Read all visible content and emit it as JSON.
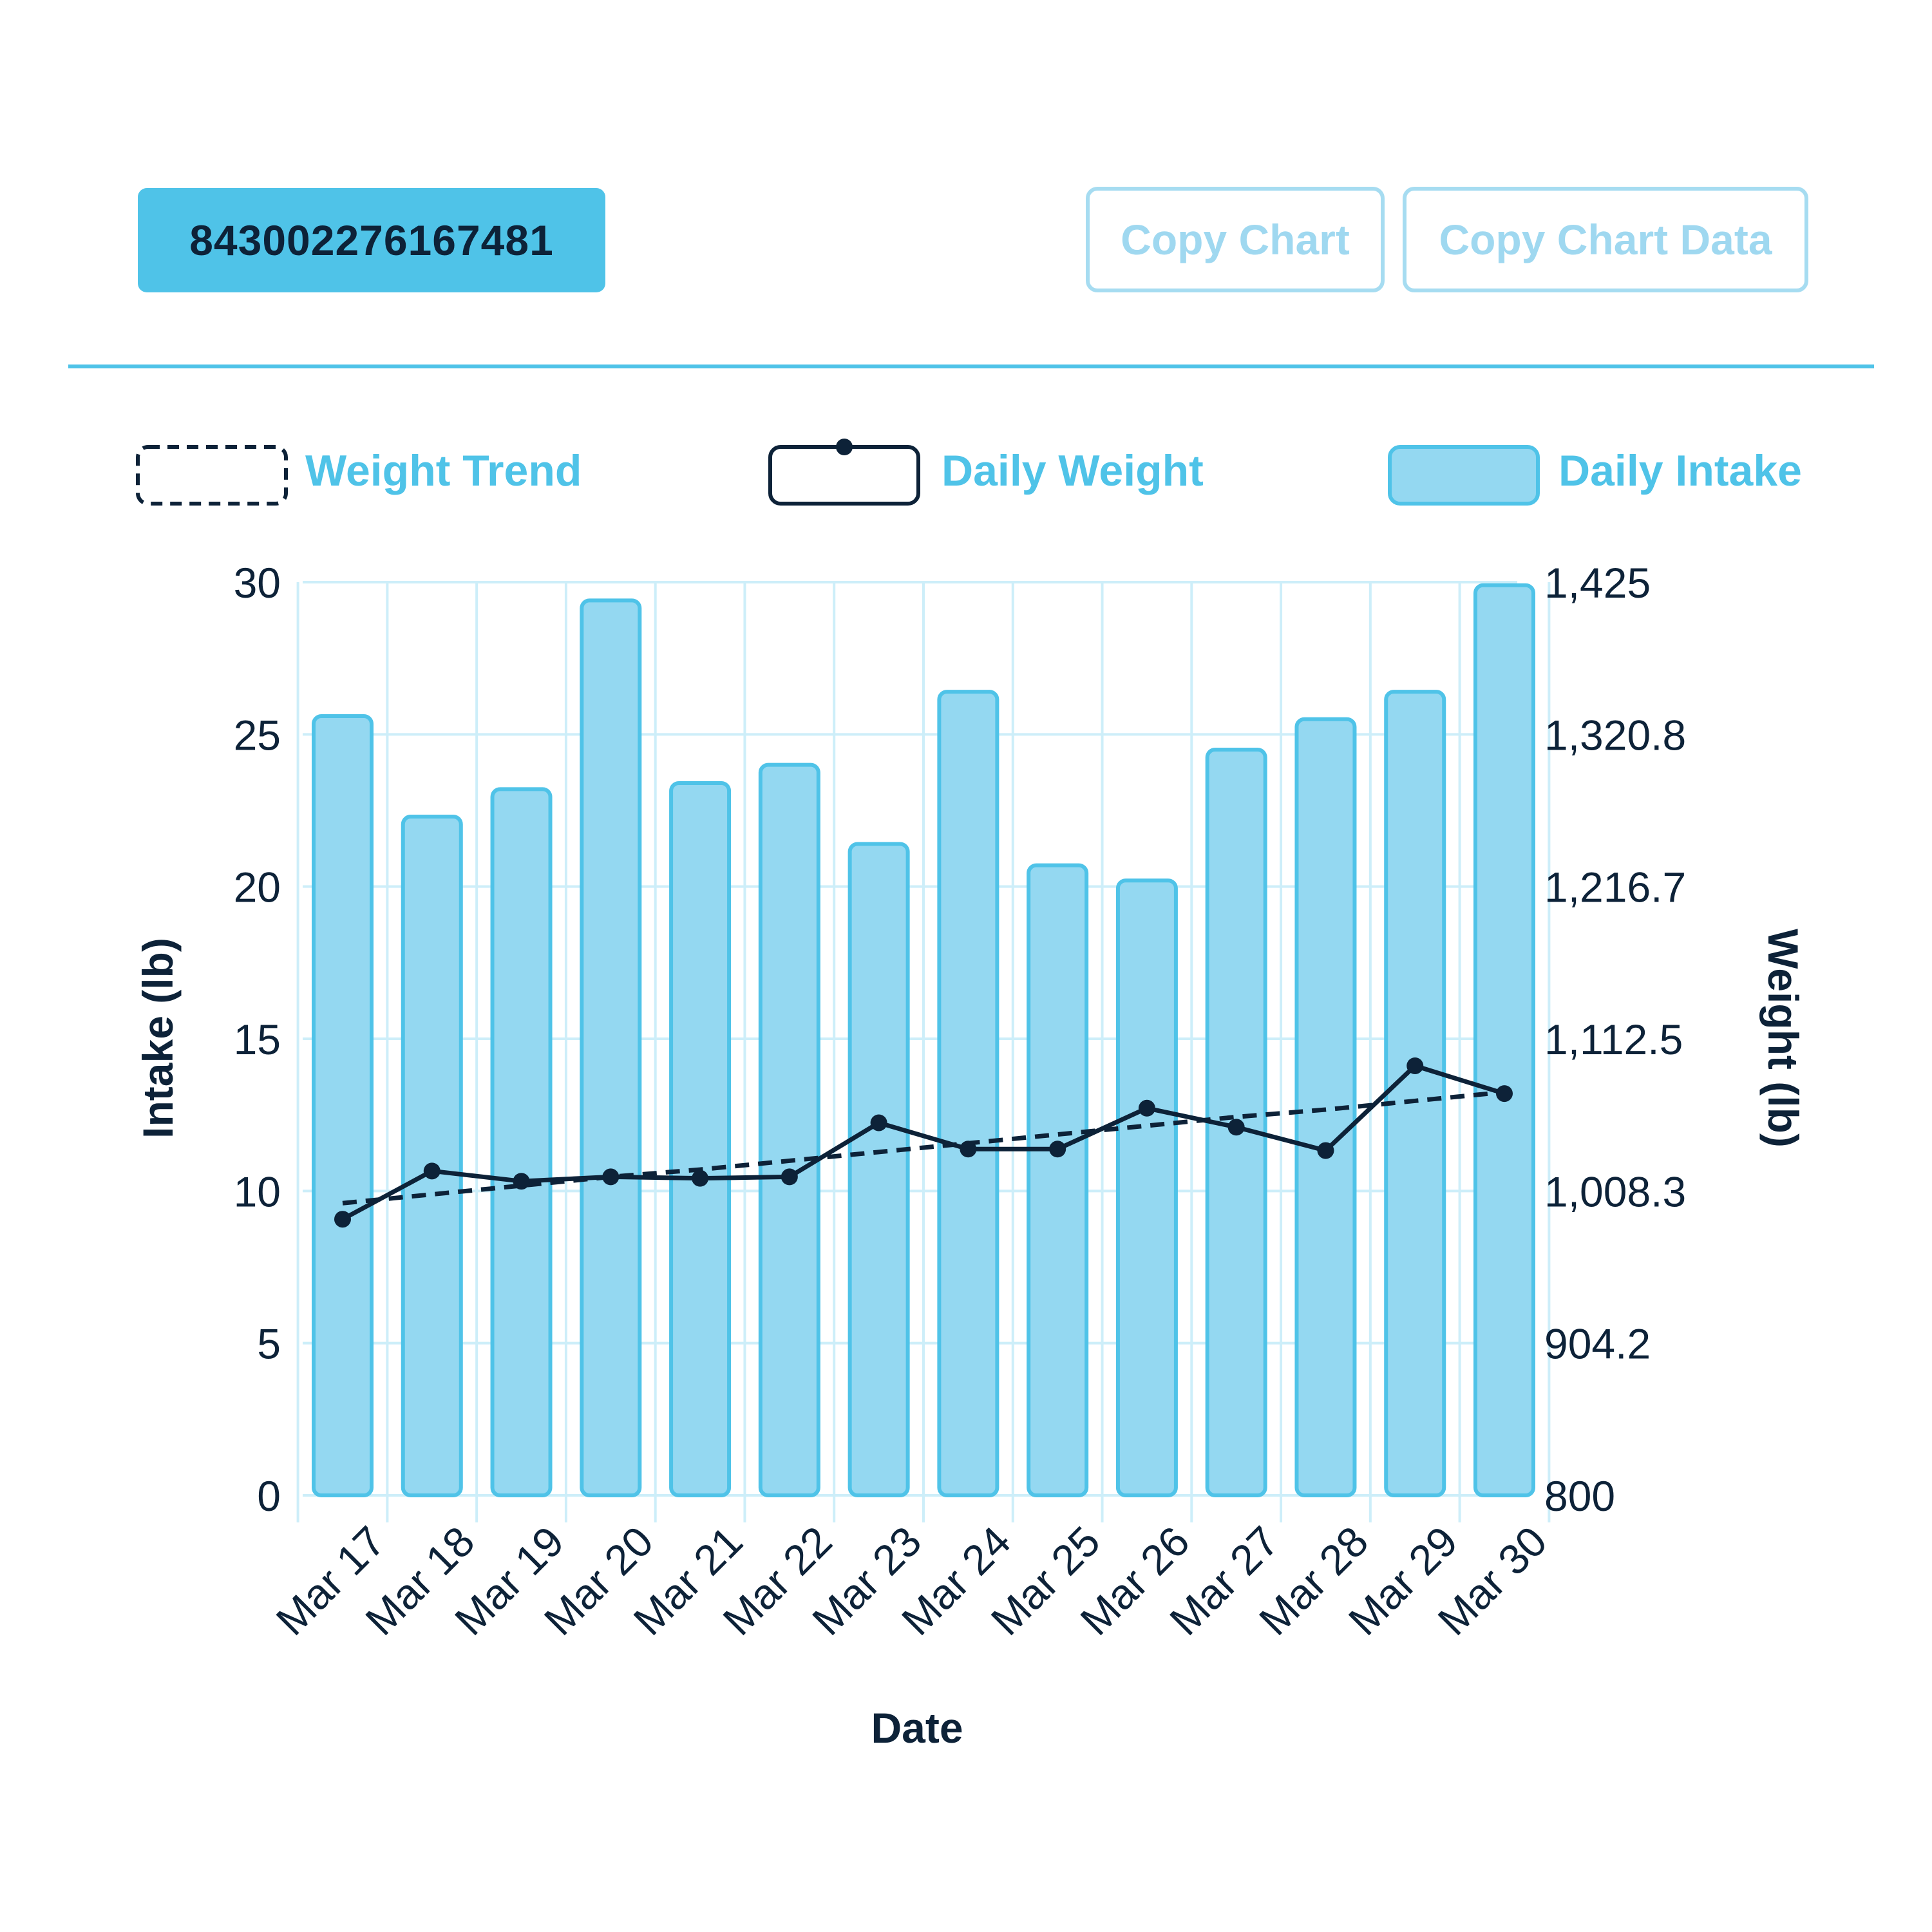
{
  "header": {
    "id_badge": "843002276167481",
    "copy_chart_label": "Copy Chart",
    "copy_chart_data_label": "Copy Chart Data"
  },
  "colors": {
    "accent": "#4fc3e8",
    "bar_fill": "#94d8f1",
    "bar_stroke": "#4fc3e8",
    "line": "#0d2238",
    "grid": "#cdeef9",
    "text_dark": "#0d2238"
  },
  "chart_data": {
    "type": "bar",
    "title": "",
    "xlabel": "Date",
    "ylabel": "Intake (lb)",
    "y2label": "Weight (lb)",
    "grid": true,
    "legend_position": "top",
    "categories": [
      "Mar 17",
      "Mar 18",
      "Mar 19",
      "Mar 20",
      "Mar 21",
      "Mar 22",
      "Mar 23",
      "Mar 24",
      "Mar 25",
      "Mar 26",
      "Mar 27",
      "Mar 28",
      "Mar 29",
      "Mar 30"
    ],
    "y_ticks": [
      "30",
      "25",
      "20",
      "15",
      "10",
      "5",
      "0"
    ],
    "y2_ticks": [
      "1,425",
      "1,320.8",
      "1,216.7",
      "1,112.5",
      "1,008.3",
      "904.2",
      "800"
    ],
    "ylim": [
      0,
      30
    ],
    "y2lim": [
      800,
      1425
    ],
    "series": [
      {
        "name": "Daily Intake",
        "type": "bar",
        "axis": "left",
        "values": [
          25.6,
          22.3,
          23.2,
          29.4,
          23.4,
          24.0,
          21.4,
          26.4,
          20.7,
          20.2,
          24.5,
          25.5,
          26.4,
          29.9
        ]
      },
      {
        "name": "Daily Weight",
        "type": "line",
        "axis": "right",
        "values": [
          989,
          1022,
          1015,
          1018,
          1017,
          1018,
          1055,
          1037,
          1037,
          1065,
          1052,
          1036,
          1094,
          1075
        ]
      },
      {
        "name": "Weight Trend",
        "type": "line",
        "axis": "right",
        "style": "dashed",
        "values": [
          1000,
          1006,
          1012,
          1018,
          1023,
          1029,
          1035,
          1041,
          1047,
          1053,
          1059,
          1064,
          1070,
          1076
        ]
      }
    ]
  }
}
